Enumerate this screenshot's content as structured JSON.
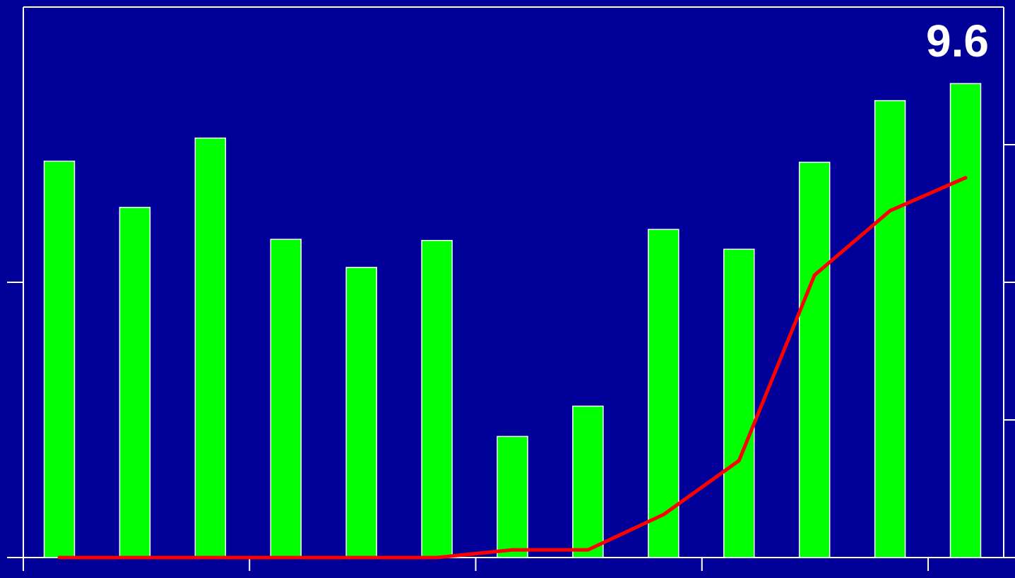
{
  "colors": {
    "background": "#000099",
    "bars": "#00ff00",
    "bar_outline": "#ffffff",
    "line": "#ff0000",
    "axes": "#ffffff",
    "value_label": "#ffffff"
  },
  "chart_data": {
    "type": "bar",
    "title": "",
    "corner_label": "9.6",
    "xlabel": "",
    "ylabel": "",
    "categories_count": 13,
    "grid": false,
    "ylim": [
      0,
      10
    ],
    "y2lim": [
      0,
      10
    ],
    "series": [
      {
        "type": "bar",
        "axis": "left",
        "values": [
          7.2,
          6.36,
          7.62,
          5.78,
          5.27,
          5.76,
          2.2,
          2.75,
          5.96,
          5.6,
          7.18,
          8.3,
          8.61
        ]
      },
      {
        "type": "line",
        "axis": "right",
        "values": [
          0.0,
          0.0,
          0.0,
          0.0,
          0.0,
          0.0,
          0.14,
          0.14,
          0.78,
          1.76,
          5.13,
          6.3,
          6.9
        ]
      }
    ]
  }
}
